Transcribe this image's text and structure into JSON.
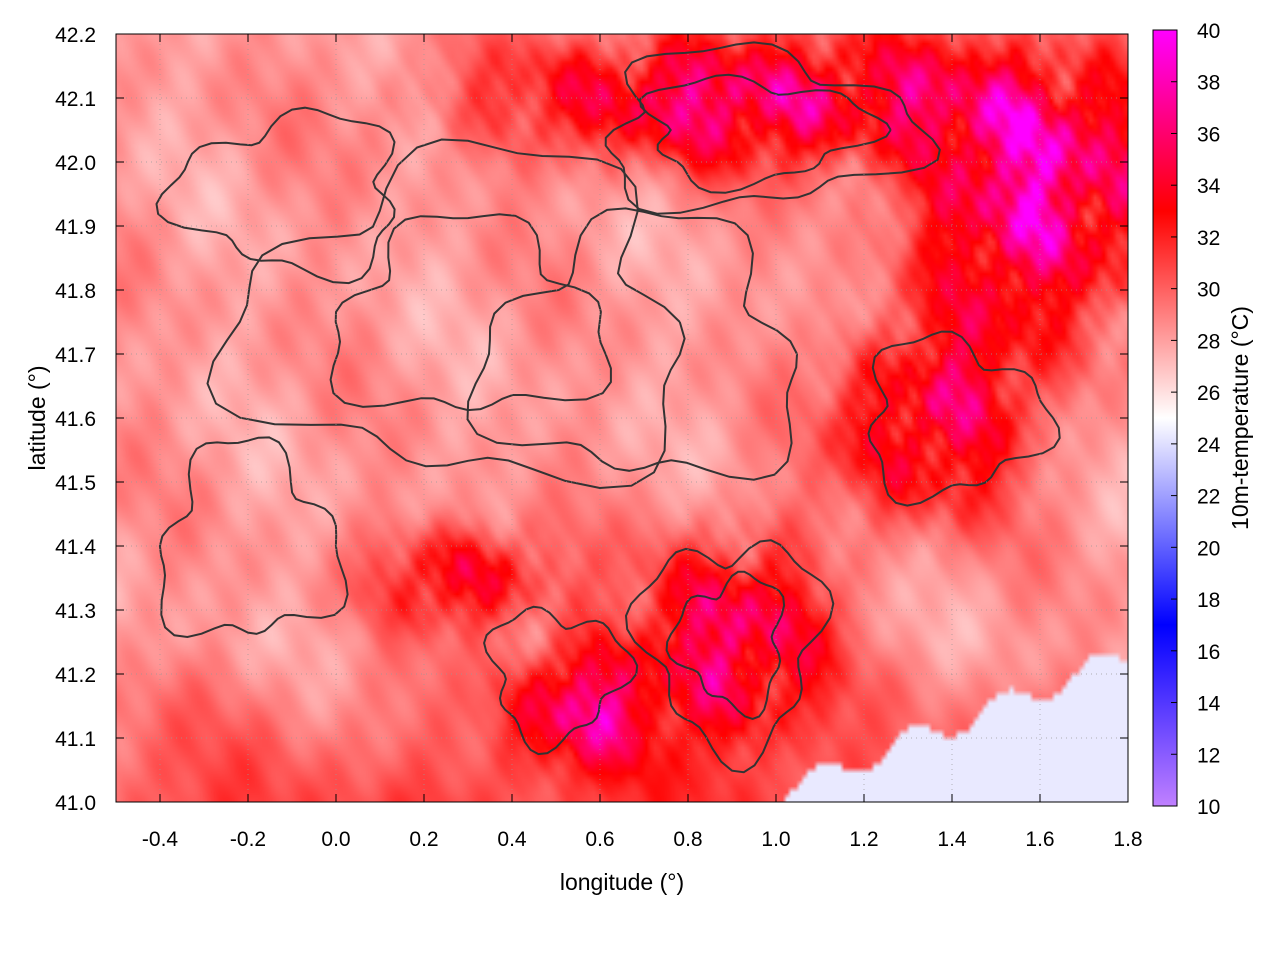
{
  "chart_data": {
    "type": "heatmap",
    "title": "",
    "xlabel": "longitude (°)",
    "ylabel": "latitude (°)",
    "colorbar_label": "10m-temperature (°C)",
    "xlim": [
      -0.5,
      1.8
    ],
    "ylim": [
      41.0,
      42.2
    ],
    "x_ticks": [
      "-0.4",
      "-0.2",
      "0.0",
      "0.2",
      "0.4",
      "0.6",
      "0.8",
      "1.0",
      "1.2",
      "1.4",
      "1.6",
      "1.8"
    ],
    "x_tick_values": [
      -0.4,
      -0.2,
      0.0,
      0.2,
      0.4,
      0.6,
      0.8,
      1.0,
      1.2,
      1.4,
      1.6,
      1.8
    ],
    "y_ticks": [
      "41.0",
      "41.1",
      "41.2",
      "41.3",
      "41.4",
      "41.5",
      "41.6",
      "41.7",
      "41.8",
      "41.9",
      "42.0",
      "42.1",
      "42.2"
    ],
    "y_tick_values": [
      41.0,
      41.1,
      41.2,
      41.3,
      41.4,
      41.5,
      41.6,
      41.7,
      41.8,
      41.9,
      42.0,
      42.1,
      42.2
    ],
    "colorbar_ticks": [
      "10",
      "12",
      "14",
      "16",
      "18",
      "20",
      "22",
      "24",
      "26",
      "28",
      "30",
      "32",
      "34",
      "36",
      "38",
      "40"
    ],
    "colorbar_tick_values": [
      10,
      12,
      14,
      16,
      18,
      20,
      22,
      24,
      26,
      28,
      30,
      32,
      34,
      36,
      38,
      40
    ],
    "zlim": [
      10,
      40
    ],
    "colormap": [
      {
        "value": 10,
        "color": "#c080ff"
      },
      {
        "value": 17,
        "color": "#0000ff"
      },
      {
        "value": 25,
        "color": "#ffffff"
      },
      {
        "value": 33,
        "color": "#ff0000"
      },
      {
        "value": 40,
        "color": "#ff00ff"
      }
    ],
    "sea_temperature": 24.3,
    "contour_color": "#333333",
    "grid": true,
    "grid_style": "dotted",
    "hot_regions": [
      {
        "lon": 0.95,
        "lat": 42.1,
        "rlon": 0.55,
        "rlat": 0.1,
        "temp": 38
      },
      {
        "lon": 1.6,
        "lat": 41.95,
        "rlon": 0.25,
        "rlat": 0.2,
        "temp": 40
      },
      {
        "lon": 1.35,
        "lat": 41.6,
        "rlon": 0.2,
        "rlat": 0.15,
        "temp": 37
      },
      {
        "lon": 0.9,
        "lat": 41.25,
        "rlon": 0.2,
        "rlat": 0.15,
        "temp": 38
      },
      {
        "lon": 0.3,
        "lat": 41.35,
        "rlon": 0.2,
        "rlat": 0.08,
        "temp": 35
      },
      {
        "lon": 0.55,
        "lat": 41.15,
        "rlon": 0.15,
        "rlat": 0.1,
        "temp": 37
      }
    ]
  }
}
